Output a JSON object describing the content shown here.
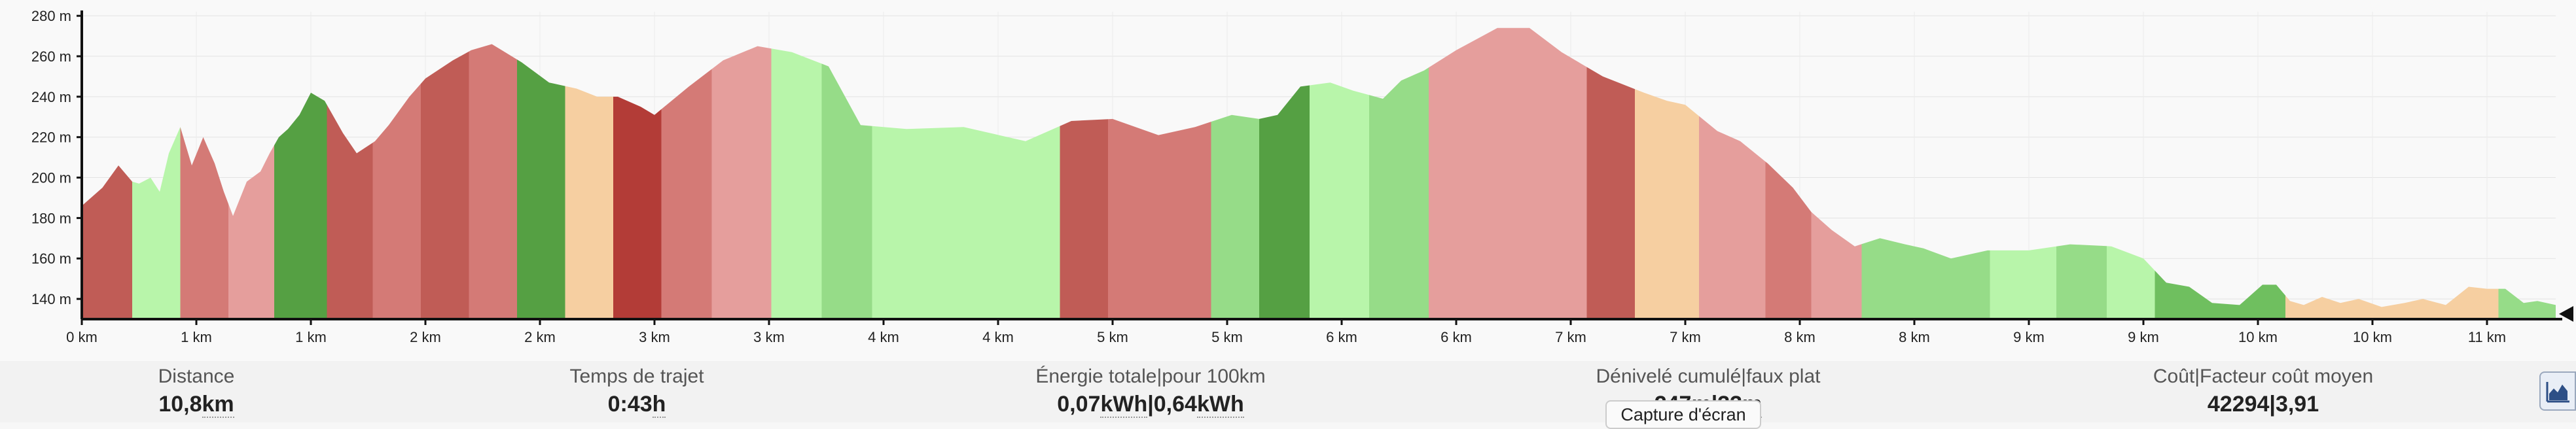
{
  "chart_data": {
    "type": "area",
    "title": "",
    "xlabel": "",
    "ylabel": "",
    "xlim": [
      0,
      10.8
    ],
    "ylim": [
      130,
      282
    ],
    "y_ticks": [
      140,
      160,
      180,
      200,
      220,
      240,
      260,
      280
    ],
    "y_tick_labels": [
      "140 m",
      "160 m",
      "180 m",
      "200 m",
      "220 m",
      "240 m",
      "260 m",
      "280 m"
    ],
    "x_ticks": [
      0,
      0.5,
      1.0,
      1.5,
      2.0,
      2.5,
      3.0,
      3.5,
      4.0,
      4.5,
      5.0,
      5.5,
      6.0,
      6.5,
      7.0,
      7.5,
      8.0,
      8.5,
      9.0,
      9.5,
      10.0,
      10.5
    ],
    "x_tick_labels": [
      "0 km",
      "1 km",
      "1 km",
      "2 km",
      "2 km",
      "3 km",
      "3 km",
      "4 km",
      "4 km",
      "5 km",
      "5 km",
      "6 km",
      "6 km",
      "7 km",
      "7 km",
      "8 km",
      "8 km",
      "9 km",
      "9 km",
      "10 km",
      "10 km",
      "11 km"
    ],
    "profile": {
      "x": [
        0,
        0.09,
        0.16,
        0.22,
        0.25,
        0.3,
        0.34,
        0.38,
        0.43,
        0.48,
        0.53,
        0.58,
        0.62,
        0.66,
        0.72,
        0.78,
        0.82,
        0.86,
        0.9,
        0.95,
        1.0,
        1.06,
        1.14,
        1.2,
        1.28,
        1.34,
        1.43,
        1.5,
        1.62,
        1.7,
        1.79,
        1.92,
        2.04,
        2.16,
        2.25,
        2.34,
        2.44,
        2.5,
        2.65,
        2.8,
        2.95,
        3.1,
        3.26,
        3.4,
        3.6,
        3.85,
        4.12,
        4.32,
        4.5,
        4.7,
        4.86,
        5.02,
        5.14,
        5.22,
        5.32,
        5.45,
        5.55,
        5.68,
        5.76,
        5.86,
        6.0,
        6.18,
        6.32,
        6.46,
        6.64,
        6.82,
        6.92,
        7.0,
        7.14,
        7.24,
        7.36,
        7.47,
        7.55,
        7.64,
        7.74,
        7.85,
        7.96,
        8.04,
        8.16,
        8.32,
        8.5,
        8.68,
        8.86,
        9.0,
        9.1,
        9.2,
        9.3,
        9.42,
        9.52,
        9.58,
        9.64,
        9.7,
        9.78,
        9.86,
        9.94,
        10.04,
        10.14,
        10.22,
        10.32,
        10.42,
        10.5,
        10.58,
        10.66,
        10.72,
        10.8
      ],
      "y": [
        186,
        195,
        206,
        198,
        197,
        200,
        193,
        212,
        225,
        206,
        220,
        207,
        193,
        181,
        198,
        203,
        212,
        220,
        224,
        231,
        242,
        238,
        222,
        212,
        218,
        226,
        240,
        249,
        258,
        263,
        266,
        257,
        247,
        244,
        240,
        240,
        235,
        231,
        245,
        258,
        265,
        262,
        255,
        226,
        224,
        225,
        218,
        228,
        229,
        221,
        225,
        231,
        229,
        231,
        245,
        247,
        243,
        239,
        248,
        253,
        263,
        274,
        274,
        262,
        250,
        242,
        238,
        236,
        223,
        218,
        207,
        195,
        183,
        174,
        166,
        170,
        167,
        165,
        160,
        164,
        164,
        167,
        166,
        160,
        148,
        146,
        138,
        137,
        147,
        147,
        139,
        137,
        141,
        138,
        140,
        136,
        138,
        140,
        137,
        146,
        145,
        145,
        138,
        139,
        137
      ]
    },
    "segments": [
      {
        "from": 0,
        "to": 0.22,
        "color": "#c05c56"
      },
      {
        "from": 0.22,
        "to": 0.43,
        "color": "#b8f5aa"
      },
      {
        "from": 0.43,
        "to": 0.64,
        "color": "#d47a76"
      },
      {
        "from": 0.64,
        "to": 0.84,
        "color": "#e59e9c"
      },
      {
        "from": 0.84,
        "to": 1.07,
        "color": "#55a043"
      },
      {
        "from": 1.07,
        "to": 1.27,
        "color": "#c05c56"
      },
      {
        "from": 1.27,
        "to": 1.48,
        "color": "#d47a76"
      },
      {
        "from": 1.48,
        "to": 1.69,
        "color": "#c05c56"
      },
      {
        "from": 1.69,
        "to": 1.9,
        "color": "#d47a76"
      },
      {
        "from": 1.9,
        "to": 2.11,
        "color": "#55a043"
      },
      {
        "from": 2.11,
        "to": 2.32,
        "color": "#f6cfa1"
      },
      {
        "from": 2.32,
        "to": 2.53,
        "color": "#b33c37"
      },
      {
        "from": 2.53,
        "to": 2.75,
        "color": "#d47a76"
      },
      {
        "from": 2.75,
        "to": 3.01,
        "color": "#e59e9c"
      },
      {
        "from": 3.01,
        "to": 3.23,
        "color": "#b8f5aa"
      },
      {
        "from": 3.23,
        "to": 3.45,
        "color": "#96dc88"
      },
      {
        "from": 3.45,
        "to": 4.27,
        "color": "#b8f5aa"
      },
      {
        "from": 4.27,
        "to": 4.48,
        "color": "#c05c56"
      },
      {
        "from": 4.48,
        "to": 4.93,
        "color": "#d47a76"
      },
      {
        "from": 4.93,
        "to": 5.14,
        "color": "#96dc88"
      },
      {
        "from": 5.14,
        "to": 5.36,
        "color": "#55a043"
      },
      {
        "from": 5.36,
        "to": 5.62,
        "color": "#b8f5aa"
      },
      {
        "from": 5.62,
        "to": 5.88,
        "color": "#96dc88"
      },
      {
        "from": 5.88,
        "to": 6.57,
        "color": "#e59e9c"
      },
      {
        "from": 6.57,
        "to": 6.78,
        "color": "#c05c56"
      },
      {
        "from": 6.78,
        "to": 7.06,
        "color": "#f6cfa1"
      },
      {
        "from": 7.06,
        "to": 7.35,
        "color": "#e59e9c"
      },
      {
        "from": 7.35,
        "to": 7.55,
        "color": "#d47a76"
      },
      {
        "from": 7.55,
        "to": 7.77,
        "color": "#e59e9c"
      },
      {
        "from": 7.77,
        "to": 8.33,
        "color": "#96dc88"
      },
      {
        "from": 8.33,
        "to": 8.62,
        "color": "#b8f5aa"
      },
      {
        "from": 8.62,
        "to": 8.84,
        "color": "#96dc88"
      },
      {
        "from": 8.84,
        "to": 9.05,
        "color": "#b8f5aa"
      },
      {
        "from": 9.05,
        "to": 9.62,
        "color": "#6fbf5f"
      },
      {
        "from": 9.62,
        "to": 10.55,
        "color": "#f6cfa1"
      },
      {
        "from": 10.55,
        "to": 10.8,
        "color": "#96dc88"
      }
    ],
    "grid": true,
    "legend": "none"
  },
  "stats": {
    "distance": {
      "label": "Distance",
      "value": "10,8",
      "unit": "km"
    },
    "time": {
      "label": "Temps de trajet",
      "value": "0:43",
      "unit": "h"
    },
    "energy": {
      "label": "Énergie totale",
      "label_sep": "|",
      "label2": "pour 100km",
      "v1": "0,07",
      "u1": "kWh",
      "sep": "|",
      "v2": "0,64",
      "u2": "kWh"
    },
    "elevation": {
      "label": "Dénivelé cumulé",
      "label_sep": "|",
      "label2": "faux plat",
      "v1": "247",
      "u1": "m",
      "sep": "|",
      "v2": "33",
      "u2": "m"
    },
    "cost": {
      "label": "Coût",
      "label_sep": "|",
      "label2": "Facteur coût moyen",
      "v1": "42294",
      "sep": "|",
      "v2": "3,91"
    }
  },
  "tooltip": {
    "label": "Capture d'écran"
  },
  "side_button": {
    "icon": "area-chart-icon"
  }
}
